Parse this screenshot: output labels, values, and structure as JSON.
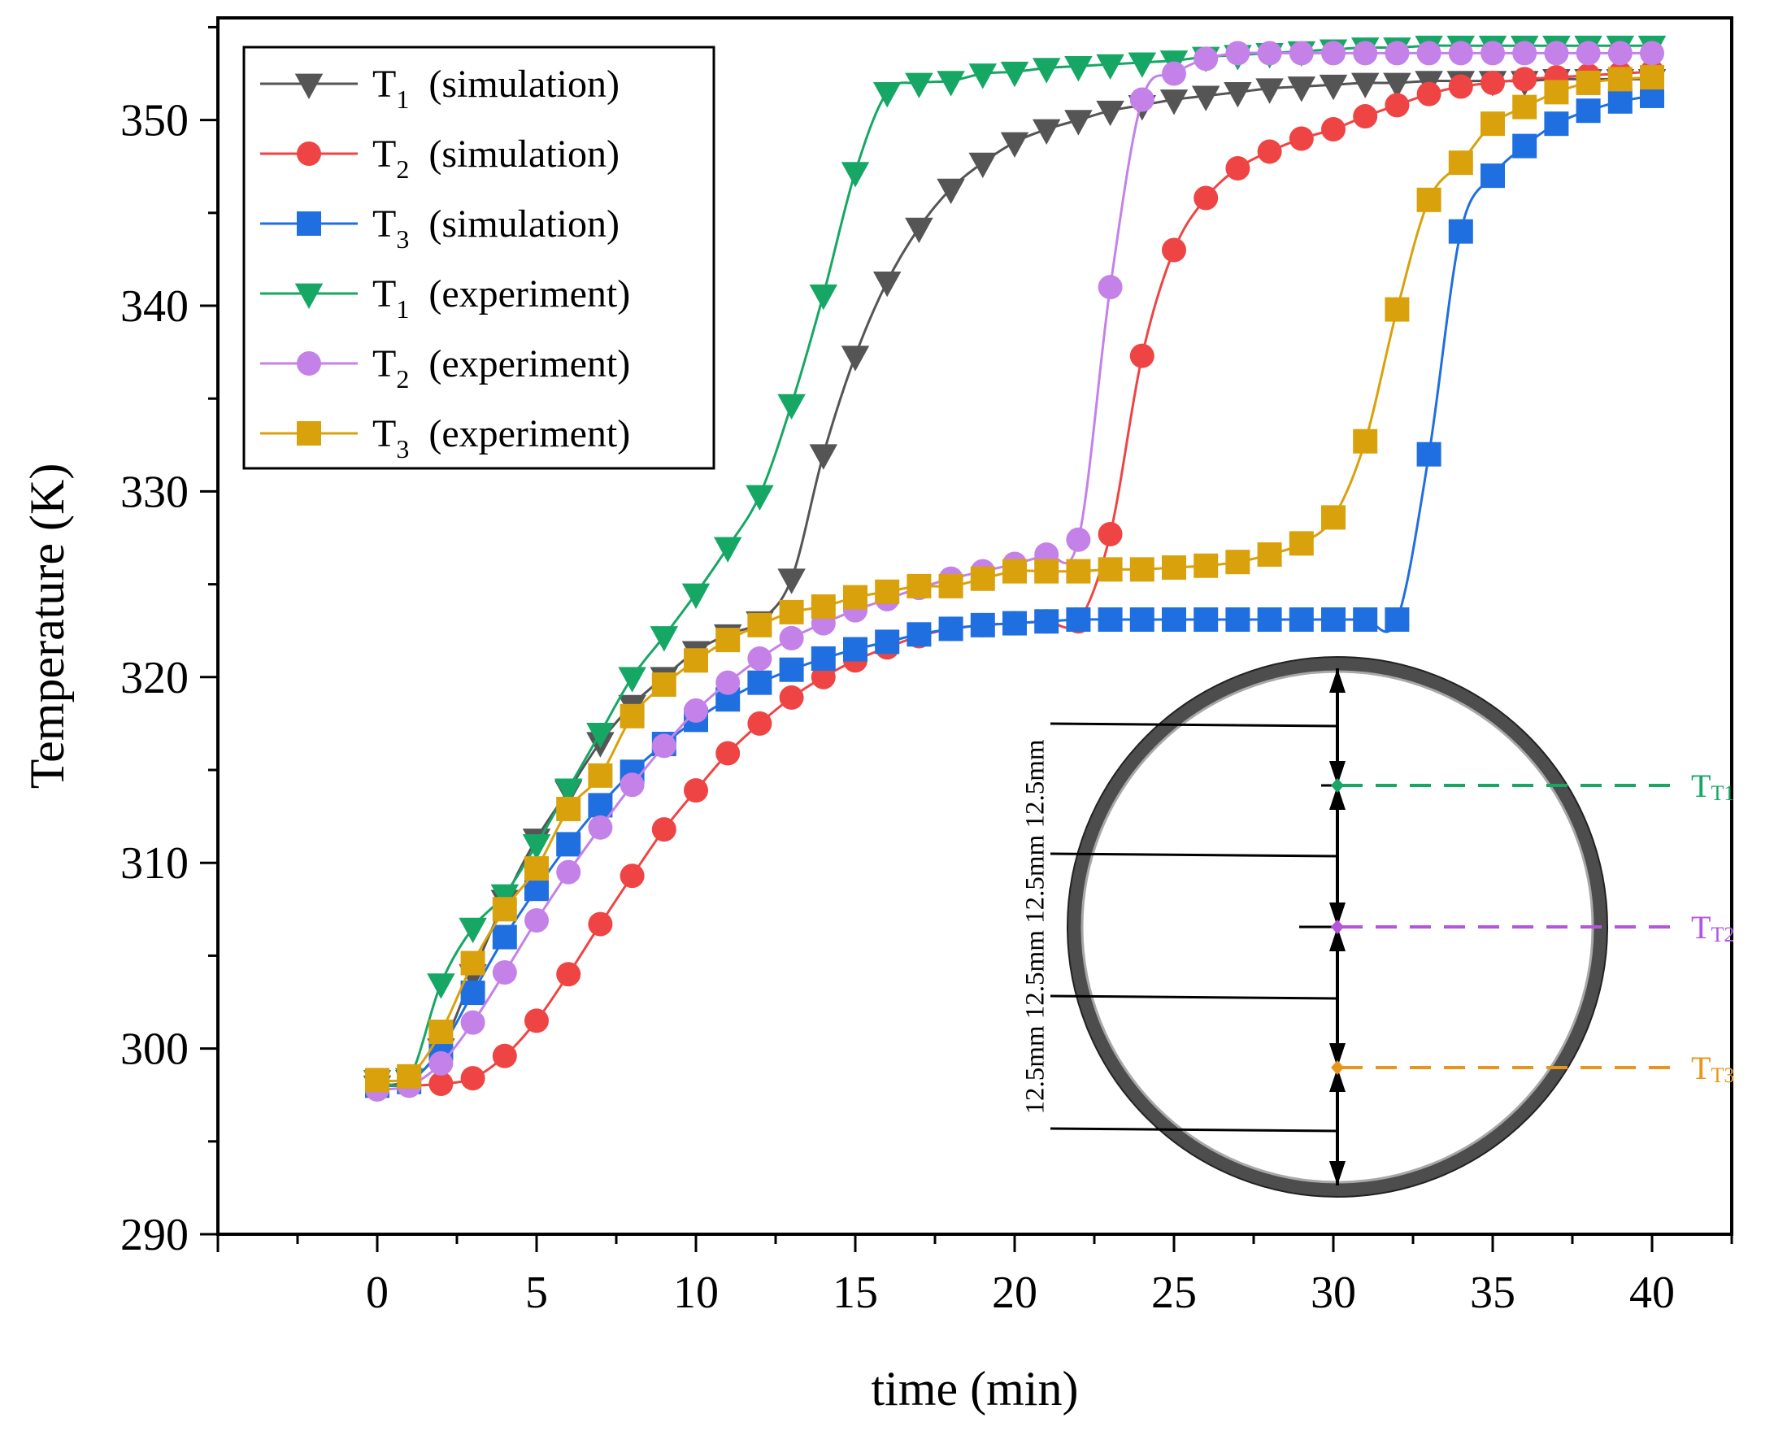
{
  "chart_data": {
    "type": "line",
    "title": "",
    "xlabel": "time (min)",
    "ylabel": "Temperature (K)",
    "xlim": [
      -5,
      42.5
    ],
    "ylim": [
      290,
      355.5
    ],
    "xticks": [
      0,
      5,
      10,
      15,
      20,
      25,
      30,
      35,
      40
    ],
    "yticks": [
      290,
      300,
      310,
      320,
      330,
      340,
      350
    ],
    "grid": false,
    "legend_position": "top-left",
    "series": [
      {
        "name": "T",
        "subscript": "1",
        "tag": "(simulation)",
        "color": "#555555",
        "marker": "triangle-down",
        "x": [
          0,
          1,
          2,
          3,
          4,
          5,
          6,
          7,
          8,
          9,
          10,
          11,
          12,
          13,
          14,
          15,
          16,
          17,
          18,
          19,
          20,
          21,
          22,
          23,
          24,
          25,
          26,
          27,
          28,
          29,
          30,
          31,
          32,
          33,
          34,
          35,
          36,
          37,
          38,
          39,
          40
        ],
        "values": [
          298,
          298.3,
          300,
          304,
          308,
          311.3,
          313.9,
          316.5,
          318.5,
          320,
          321.4,
          322.3,
          323,
          325.3,
          332,
          337.3,
          341.3,
          344.2,
          346.3,
          347.7,
          348.8,
          349.5,
          350,
          350.5,
          350.8,
          351.1,
          351.3,
          351.5,
          351.7,
          351.8,
          351.9,
          352,
          352,
          352.1,
          352.1,
          352.1,
          352.1,
          352.2,
          352.2,
          352.2,
          352.2
        ]
      },
      {
        "name": "T",
        "subscript": "2",
        "tag": "(simulation)",
        "color": "#ef4444",
        "marker": "circle",
        "x": [
          0,
          1,
          2,
          3,
          4,
          5,
          6,
          7,
          8,
          9,
          10,
          11,
          12,
          13,
          14,
          15,
          16,
          17,
          18,
          19,
          20,
          21,
          22,
          23,
          24,
          25,
          26,
          27,
          28,
          29,
          30,
          31,
          32,
          33,
          34,
          35,
          36,
          37,
          38,
          39,
          40
        ],
        "values": [
          298,
          298,
          298.1,
          298.4,
          299.6,
          301.5,
          304,
          306.7,
          309.3,
          311.8,
          313.9,
          315.9,
          317.5,
          318.9,
          320,
          320.9,
          321.6,
          322.2,
          322.6,
          322.8,
          322.9,
          323,
          323,
          327.7,
          337.3,
          343,
          345.8,
          347.4,
          348.3,
          349,
          349.5,
          350.2,
          350.8,
          351.4,
          351.8,
          352,
          352.2,
          352.3,
          352.4,
          352.5,
          352.6
        ]
      },
      {
        "name": "T",
        "subscript": "3",
        "tag": "(simulation)",
        "color": "#1f6fe0",
        "marker": "square",
        "x": [
          0,
          1,
          2,
          3,
          4,
          5,
          6,
          7,
          8,
          9,
          10,
          11,
          12,
          13,
          14,
          15,
          16,
          17,
          18,
          19,
          20,
          21,
          22,
          23,
          24,
          25,
          26,
          27,
          28,
          29,
          30,
          31,
          32,
          33,
          34,
          35,
          36,
          37,
          38,
          39,
          40
        ],
        "values": [
          298,
          298.2,
          300,
          303,
          306,
          308.6,
          311,
          313.1,
          314.9,
          316.4,
          317.7,
          318.8,
          319.7,
          320.4,
          321,
          321.5,
          321.9,
          322.3,
          322.6,
          322.8,
          322.9,
          323,
          323.1,
          323.1,
          323.1,
          323.1,
          323.1,
          323.1,
          323.1,
          323.1,
          323.1,
          323.1,
          323.1,
          332,
          344,
          347,
          348.6,
          349.8,
          350.5,
          351,
          351.3
        ]
      },
      {
        "name": "T",
        "subscript": "1",
        "tag": "(experiment)",
        "color": "#16a765",
        "marker": "triangle-down",
        "x": [
          0,
          1,
          2,
          3,
          4,
          5,
          6,
          7,
          8,
          9,
          10,
          11,
          12,
          13,
          14,
          15,
          16,
          17,
          18,
          19,
          20,
          21,
          22,
          23,
          24,
          25,
          26,
          27,
          28,
          29,
          30,
          31,
          32,
          33,
          34,
          35,
          36,
          37,
          38,
          39,
          40
        ],
        "values": [
          298.3,
          298.4,
          303.5,
          306.5,
          308.3,
          311,
          314,
          317,
          320,
          322.2,
          324.5,
          327,
          329.8,
          334.7,
          340.6,
          347.2,
          351.5,
          352,
          352.1,
          352.5,
          352.6,
          352.8,
          352.9,
          353,
          353.1,
          353.2,
          353.4,
          353.5,
          353.6,
          353.7,
          353.8,
          353.9,
          353.9,
          354,
          354,
          354,
          354,
          354,
          354,
          354,
          354
        ]
      },
      {
        "name": "T",
        "subscript": "2",
        "tag": "(experiment)",
        "color": "#c481e8",
        "marker": "circle",
        "x": [
          0,
          1,
          2,
          3,
          4,
          5,
          6,
          7,
          8,
          9,
          10,
          11,
          12,
          13,
          14,
          15,
          16,
          17,
          18,
          19,
          20,
          21,
          22,
          23,
          24,
          25,
          26,
          27,
          28,
          29,
          30,
          31,
          32,
          33,
          34,
          35,
          36,
          37,
          38,
          39,
          40
        ],
        "values": [
          297.8,
          298,
          299.2,
          301.4,
          304.1,
          306.9,
          309.5,
          311.9,
          314.2,
          316.3,
          318.2,
          319.7,
          321,
          322.1,
          322.9,
          323.6,
          324.2,
          324.8,
          325.3,
          325.7,
          326.1,
          326.6,
          327.4,
          341,
          351.1,
          352.5,
          353.3,
          353.6,
          353.6,
          353.6,
          353.6,
          353.6,
          353.6,
          353.6,
          353.6,
          353.6,
          353.6,
          353.6,
          353.6,
          353.6,
          353.6
        ]
      },
      {
        "name": "T",
        "subscript": "3",
        "tag": "(experiment)",
        "color": "#d9a10b",
        "marker": "square",
        "x": [
          0,
          1,
          2,
          3,
          4,
          5,
          6,
          7,
          8,
          9,
          10,
          11,
          12,
          13,
          14,
          15,
          16,
          17,
          18,
          19,
          20,
          21,
          22,
          23,
          24,
          25,
          26,
          27,
          28,
          29,
          30,
          31,
          32,
          33,
          34,
          35,
          36,
          37,
          38,
          39,
          40
        ],
        "values": [
          298.3,
          298.5,
          300.9,
          304.6,
          307.5,
          309.7,
          312.9,
          314.7,
          317.9,
          319.6,
          320.9,
          322,
          322.8,
          323.5,
          323.8,
          324.3,
          324.6,
          324.9,
          324.9,
          325.3,
          325.7,
          325.7,
          325.7,
          325.8,
          325.8,
          325.9,
          326,
          326.2,
          326.6,
          327.2,
          328.6,
          332.7,
          339.8,
          345.7,
          347.7,
          349.8,
          350.7,
          351.5,
          352,
          352.2,
          352.3
        ]
      }
    ],
    "inset": {
      "labels": [
        "T1",
        "T2",
        "T3"
      ],
      "colors": [
        "#16a765",
        "#b455e0",
        "#e8961a"
      ],
      "dimension_label": "12.5mm 12.5mm 12.5mm 12.5mm"
    }
  }
}
